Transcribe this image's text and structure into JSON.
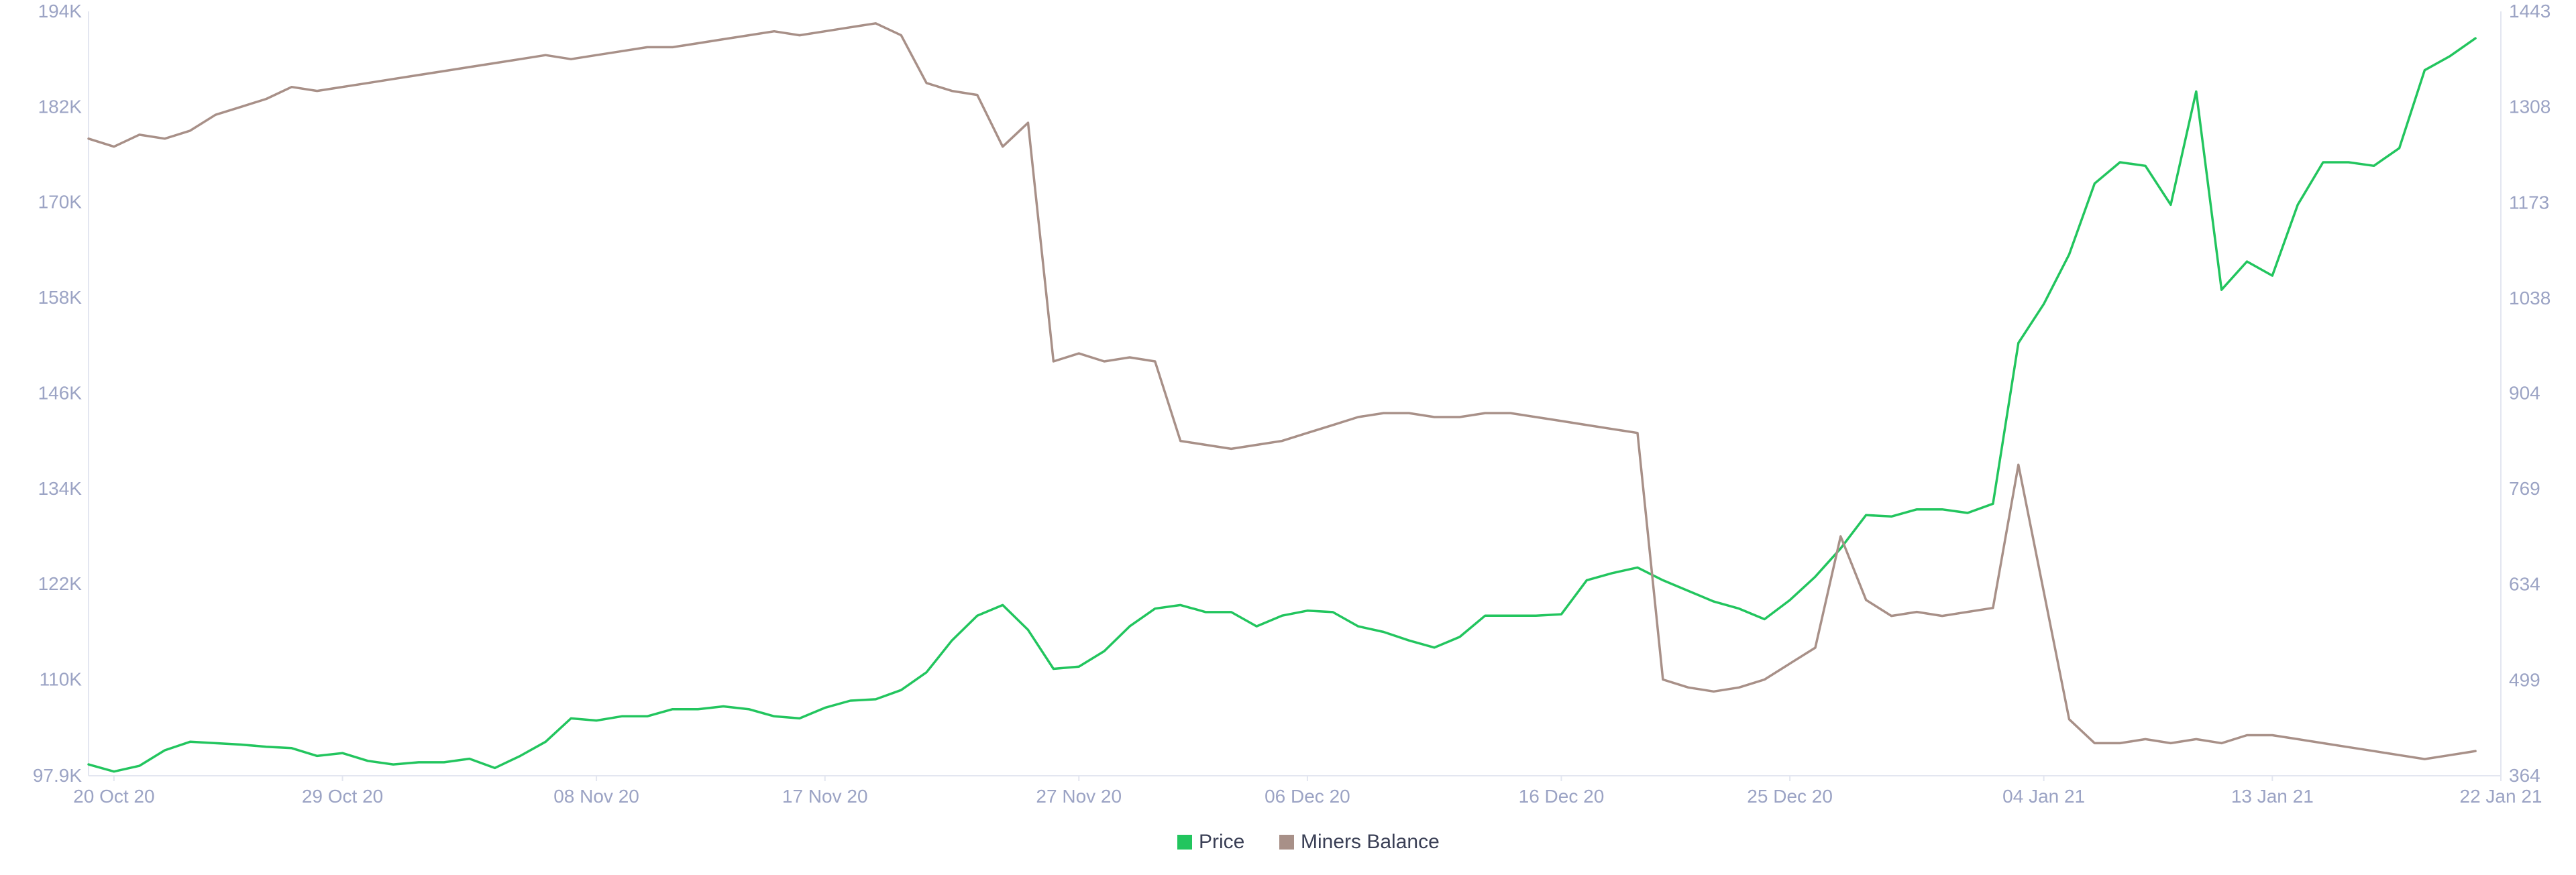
{
  "chart_data": {
    "type": "line",
    "title": "",
    "xlabel": "",
    "ylabel_left": "",
    "ylabel_right": "",
    "x_range": [
      "2020-10-19",
      "2021-01-22"
    ],
    "x_ticks": [
      {
        "date": "2020-10-20",
        "label": "20 Oct 20"
      },
      {
        "date": "2020-10-29",
        "label": "29 Oct 20"
      },
      {
        "date": "2020-11-08",
        "label": "08 Nov 20"
      },
      {
        "date": "2020-11-17",
        "label": "17 Nov 20"
      },
      {
        "date": "2020-11-27",
        "label": "27 Nov 20"
      },
      {
        "date": "2020-12-06",
        "label": "06 Dec 20"
      },
      {
        "date": "2020-12-16",
        "label": "16 Dec 20"
      },
      {
        "date": "2020-12-25",
        "label": "25 Dec 20"
      },
      {
        "date": "2021-01-04",
        "label": "04 Jan 21"
      },
      {
        "date": "2021-01-13",
        "label": "13 Jan 21"
      },
      {
        "date": "2021-01-22",
        "label": "22 Jan 21"
      }
    ],
    "y_left": {
      "range": [
        97900,
        194000
      ],
      "ticks": [
        {
          "value": 97900,
          "label": "97.9K"
        },
        {
          "value": 110000,
          "label": "110K"
        },
        {
          "value": 122000,
          "label": "122K"
        },
        {
          "value": 134000,
          "label": "134K"
        },
        {
          "value": 146000,
          "label": "146K"
        },
        {
          "value": 158000,
          "label": "158K"
        },
        {
          "value": 170000,
          "label": "170K"
        },
        {
          "value": 182000,
          "label": "182K"
        },
        {
          "value": 194000,
          "label": "194K"
        }
      ]
    },
    "y_right": {
      "range": [
        364,
        1443
      ],
      "ticks": [
        {
          "value": 364,
          "label": "364"
        },
        {
          "value": 499,
          "label": "499"
        },
        {
          "value": 634,
          "label": "634"
        },
        {
          "value": 769,
          "label": "769"
        },
        {
          "value": 904,
          "label": "904"
        },
        {
          "value": 1038,
          "label": "1038"
        },
        {
          "value": 1173,
          "label": "1173"
        },
        {
          "value": 1308,
          "label": "1308"
        },
        {
          "value": 1443,
          "label": "1443"
        }
      ]
    },
    "grid": false,
    "legend_position": "bottom-center",
    "series": [
      {
        "name": "Price",
        "axis": "right",
        "color": "#22c55e",
        "points": [
          [
            "2020-10-19",
            380
          ],
          [
            "2020-10-20",
            370
          ],
          [
            "2020-10-21",
            378
          ],
          [
            "2020-10-22",
            400
          ],
          [
            "2020-10-23",
            412
          ],
          [
            "2020-10-24",
            410
          ],
          [
            "2020-10-25",
            408
          ],
          [
            "2020-10-26",
            405
          ],
          [
            "2020-10-27",
            403
          ],
          [
            "2020-10-28",
            392
          ],
          [
            "2020-10-29",
            396
          ],
          [
            "2020-10-30",
            385
          ],
          [
            "2020-10-31",
            380
          ],
          [
            "2020-11-01",
            383
          ],
          [
            "2020-11-02",
            383
          ],
          [
            "2020-11-03",
            388
          ],
          [
            "2020-11-04",
            375
          ],
          [
            "2020-11-05",
            392
          ],
          [
            "2020-11-06",
            412
          ],
          [
            "2020-11-07",
            445
          ],
          [
            "2020-11-08",
            442
          ],
          [
            "2020-11-09",
            448
          ],
          [
            "2020-11-10",
            448
          ],
          [
            "2020-11-11",
            458
          ],
          [
            "2020-11-12",
            458
          ],
          [
            "2020-11-13",
            462
          ],
          [
            "2020-11-14",
            458
          ],
          [
            "2020-11-15",
            448
          ],
          [
            "2020-11-16",
            445
          ],
          [
            "2020-11-17",
            460
          ],
          [
            "2020-11-18",
            470
          ],
          [
            "2020-11-19",
            472
          ],
          [
            "2020-11-20",
            485
          ],
          [
            "2020-11-21",
            510
          ],
          [
            "2020-11-22",
            555
          ],
          [
            "2020-11-23",
            590
          ],
          [
            "2020-11-24",
            605
          ],
          [
            "2020-11-25",
            570
          ],
          [
            "2020-11-26",
            515
          ],
          [
            "2020-11-27",
            518
          ],
          [
            "2020-11-28",
            540
          ],
          [
            "2020-11-29",
            575
          ],
          [
            "2020-11-30",
            600
          ],
          [
            "2020-12-01",
            605
          ],
          [
            "2020-12-02",
            595
          ],
          [
            "2020-12-03",
            595
          ],
          [
            "2020-12-04",
            575
          ],
          [
            "2020-12-05",
            590
          ],
          [
            "2020-12-06",
            597
          ],
          [
            "2020-12-07",
            595
          ],
          [
            "2020-12-08",
            575
          ],
          [
            "2020-12-09",
            567
          ],
          [
            "2020-12-10",
            555
          ],
          [
            "2020-12-11",
            545
          ],
          [
            "2020-12-12",
            560
          ],
          [
            "2020-12-13",
            590
          ],
          [
            "2020-12-14",
            590
          ],
          [
            "2020-12-15",
            590
          ],
          [
            "2020-12-16",
            592
          ],
          [
            "2020-12-17",
            640
          ],
          [
            "2020-12-18",
            650
          ],
          [
            "2020-12-19",
            658
          ],
          [
            "2020-12-20",
            640
          ],
          [
            "2020-12-21",
            625
          ],
          [
            "2020-12-22",
            610
          ],
          [
            "2020-12-23",
            600
          ],
          [
            "2020-12-24",
            585
          ],
          [
            "2020-12-25",
            612
          ],
          [
            "2020-12-26",
            645
          ],
          [
            "2020-12-27",
            685
          ],
          [
            "2020-12-28",
            732
          ],
          [
            "2020-12-29",
            730
          ],
          [
            "2020-12-30",
            740
          ],
          [
            "2020-12-31",
            740
          ],
          [
            "2021-01-01",
            735
          ],
          [
            "2021-01-02",
            748
          ],
          [
            "2021-01-03",
            975
          ],
          [
            "2021-01-04",
            1030
          ],
          [
            "2021-01-05",
            1100
          ],
          [
            "2021-01-06",
            1200
          ],
          [
            "2021-01-07",
            1230
          ],
          [
            "2021-01-08",
            1225
          ],
          [
            "2021-01-09",
            1170
          ],
          [
            "2021-01-10",
            1330
          ],
          [
            "2021-01-11",
            1050
          ],
          [
            "2021-01-12",
            1090
          ],
          [
            "2021-01-13",
            1070
          ],
          [
            "2021-01-14",
            1170
          ],
          [
            "2021-01-15",
            1230
          ],
          [
            "2021-01-16",
            1230
          ],
          [
            "2021-01-17",
            1225
          ],
          [
            "2021-01-18",
            1250
          ],
          [
            "2021-01-19",
            1360
          ],
          [
            "2021-01-20",
            1380
          ],
          [
            "2021-01-21",
            1405
          ]
        ]
      },
      {
        "name": "Miners Balance",
        "axis": "left",
        "color": "#a89088",
        "points": [
          [
            "2020-10-19",
            178000
          ],
          [
            "2020-10-20",
            177000
          ],
          [
            "2020-10-21",
            178500
          ],
          [
            "2020-10-22",
            178000
          ],
          [
            "2020-10-23",
            179000
          ],
          [
            "2020-10-24",
            181000
          ],
          [
            "2020-10-25",
            182000
          ],
          [
            "2020-10-26",
            183000
          ],
          [
            "2020-10-27",
            184500
          ],
          [
            "2020-10-28",
            184000
          ],
          [
            "2020-10-29",
            184500
          ],
          [
            "2020-10-30",
            185000
          ],
          [
            "2020-10-31",
            185500
          ],
          [
            "2020-11-01",
            186000
          ],
          [
            "2020-11-02",
            186500
          ],
          [
            "2020-11-03",
            187000
          ],
          [
            "2020-11-04",
            187500
          ],
          [
            "2020-11-05",
            188000
          ],
          [
            "2020-11-06",
            188500
          ],
          [
            "2020-11-07",
            188000
          ],
          [
            "2020-11-08",
            188500
          ],
          [
            "2020-11-09",
            189000
          ],
          [
            "2020-11-10",
            189500
          ],
          [
            "2020-11-11",
            189500
          ],
          [
            "2020-11-12",
            190000
          ],
          [
            "2020-11-13",
            190500
          ],
          [
            "2020-11-14",
            191000
          ],
          [
            "2020-11-15",
            191500
          ],
          [
            "2020-11-16",
            191000
          ],
          [
            "2020-11-17",
            191500
          ],
          [
            "2020-11-18",
            192000
          ],
          [
            "2020-11-19",
            192500
          ],
          [
            "2020-11-20",
            191000
          ],
          [
            "2020-11-21",
            185000
          ],
          [
            "2020-11-22",
            184000
          ],
          [
            "2020-11-23",
            183500
          ],
          [
            "2020-11-24",
            177000
          ],
          [
            "2020-11-25",
            180000
          ],
          [
            "2020-11-26",
            150000
          ],
          [
            "2020-11-27",
            151000
          ],
          [
            "2020-11-28",
            150000
          ],
          [
            "2020-11-29",
            150500
          ],
          [
            "2020-11-30",
            150000
          ],
          [
            "2020-12-01",
            140000
          ],
          [
            "2020-12-02",
            139500
          ],
          [
            "2020-12-03",
            139000
          ],
          [
            "2020-12-04",
            139500
          ],
          [
            "2020-12-05",
            140000
          ],
          [
            "2020-12-06",
            141000
          ],
          [
            "2020-12-07",
            142000
          ],
          [
            "2020-12-08",
            143000
          ],
          [
            "2020-12-09",
            143500
          ],
          [
            "2020-12-10",
            143500
          ],
          [
            "2020-12-11",
            143000
          ],
          [
            "2020-12-12",
            143000
          ],
          [
            "2020-12-13",
            143500
          ],
          [
            "2020-12-14",
            143500
          ],
          [
            "2020-12-15",
            143000
          ],
          [
            "2020-12-16",
            142500
          ],
          [
            "2020-12-17",
            142000
          ],
          [
            "2020-12-18",
            141500
          ],
          [
            "2020-12-19",
            141000
          ],
          [
            "2020-12-20",
            110000
          ],
          [
            "2020-12-21",
            109000
          ],
          [
            "2020-12-22",
            108500
          ],
          [
            "2020-12-23",
            109000
          ],
          [
            "2020-12-24",
            110000
          ],
          [
            "2020-12-25",
            112000
          ],
          [
            "2020-12-26",
            114000
          ],
          [
            "2020-12-27",
            128000
          ],
          [
            "2020-12-28",
            120000
          ],
          [
            "2020-12-29",
            118000
          ],
          [
            "2020-12-30",
            118500
          ],
          [
            "2020-12-31",
            118000
          ],
          [
            "2021-01-01",
            118500
          ],
          [
            "2021-01-02",
            119000
          ],
          [
            "2021-01-03",
            137000
          ],
          [
            "2021-01-04",
            121000
          ],
          [
            "2021-01-05",
            105000
          ],
          [
            "2021-01-06",
            102000
          ],
          [
            "2021-01-07",
            102000
          ],
          [
            "2021-01-08",
            102500
          ],
          [
            "2021-01-09",
            102000
          ],
          [
            "2021-01-10",
            102500
          ],
          [
            "2021-01-11",
            102000
          ],
          [
            "2021-01-12",
            103000
          ],
          [
            "2021-01-13",
            103000
          ],
          [
            "2021-01-14",
            102500
          ],
          [
            "2021-01-15",
            102000
          ],
          [
            "2021-01-16",
            101500
          ],
          [
            "2021-01-17",
            101000
          ],
          [
            "2021-01-18",
            100500
          ],
          [
            "2021-01-19",
            100000
          ],
          [
            "2021-01-20",
            100500
          ],
          [
            "2021-01-21",
            101000
          ]
        ]
      }
    ]
  }
}
